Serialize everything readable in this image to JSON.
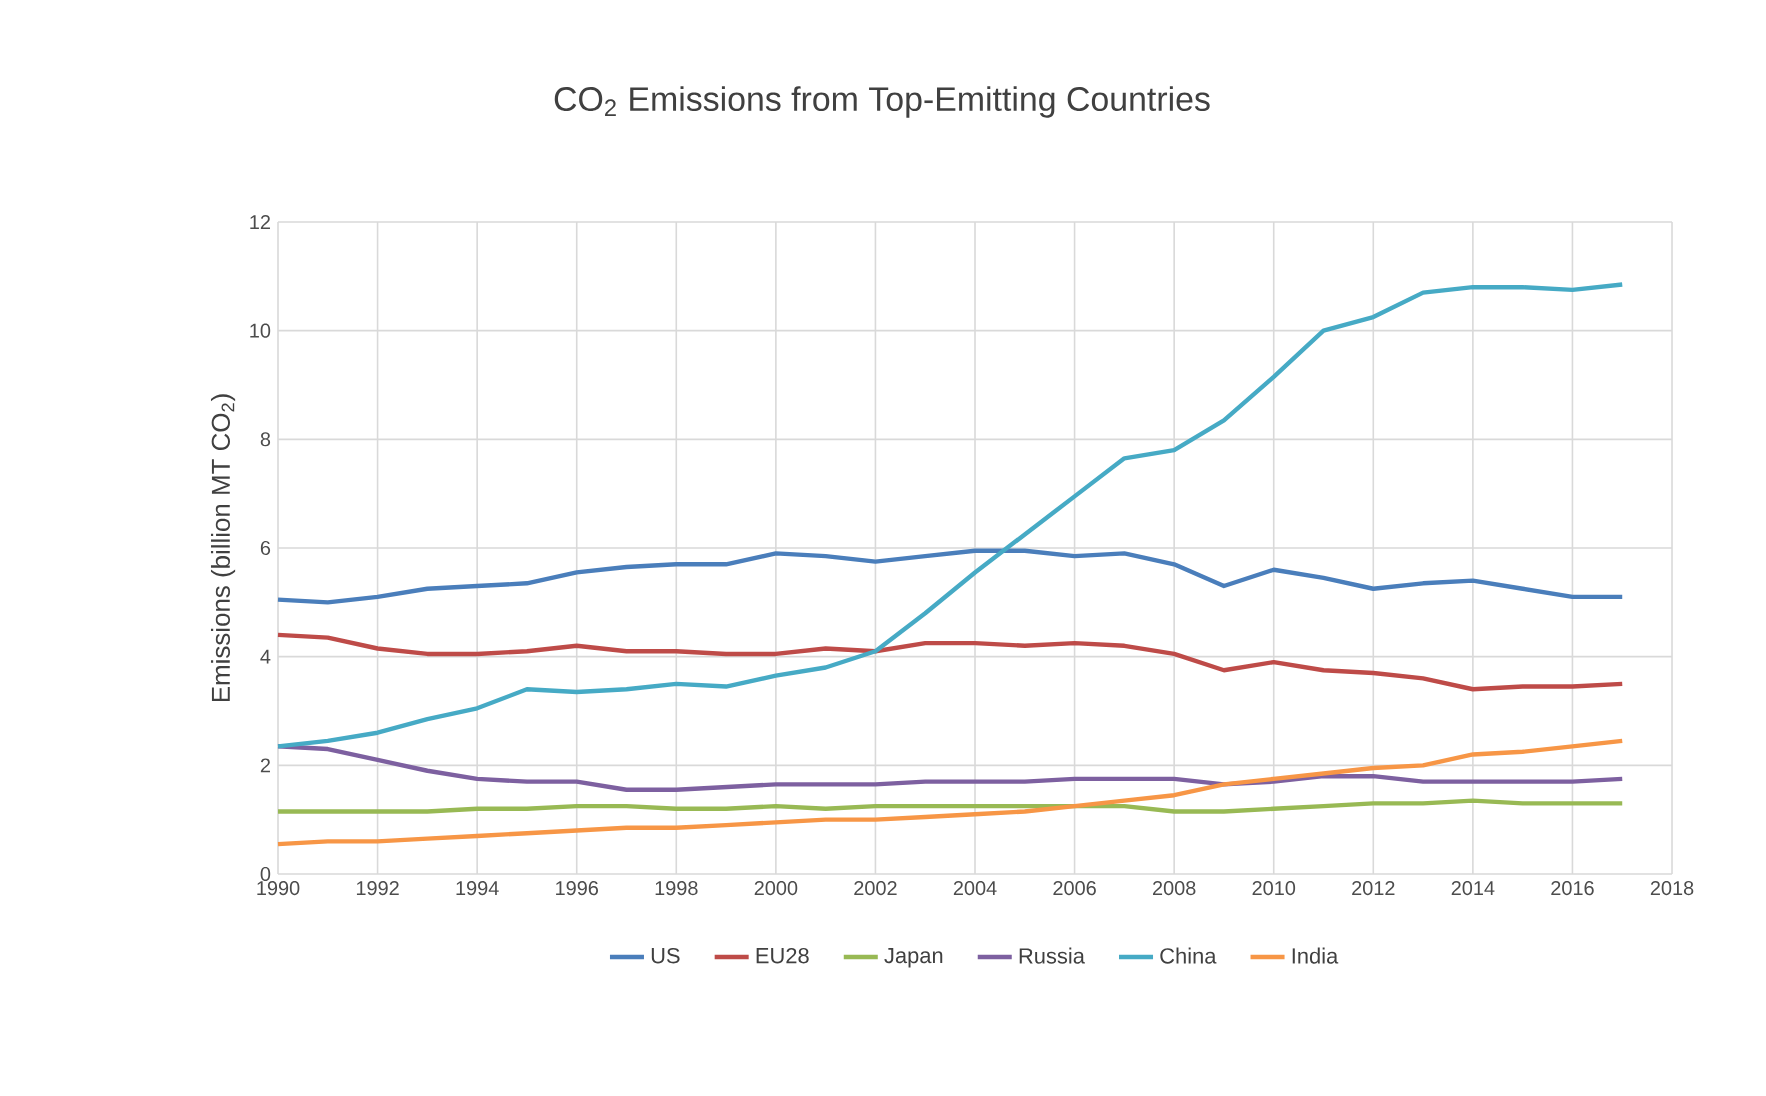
{
  "chart_data": {
    "type": "line",
    "title": "CO$_{2}$ Emissions from Top-Emitting Countries",
    "ylabel": "Emissions (billion MT CO$_{2}$)",
    "x": [
      1990,
      1991,
      1992,
      1993,
      1994,
      1995,
      1996,
      1997,
      1998,
      1999,
      2000,
      2001,
      2002,
      2003,
      2004,
      2005,
      2006,
      2007,
      2008,
      2009,
      2010,
      2011,
      2012,
      2013,
      2014,
      2015,
      2016,
      2017
    ],
    "xlim": [
      1990,
      2018
    ],
    "xticks": [
      1990,
      1992,
      1994,
      1996,
      1998,
      2000,
      2002,
      2004,
      2006,
      2008,
      2010,
      2012,
      2014,
      2016,
      2018
    ],
    "ylim": [
      0,
      12
    ],
    "yticks": [
      0,
      2,
      4,
      6,
      8,
      10,
      12
    ],
    "grid": true,
    "legend": "bottom",
    "marker": "none",
    "line_style": "solid",
    "series": [
      {
        "name": "US",
        "color": "#4a7ebb",
        "values": [
          5.05,
          5.0,
          5.1,
          5.25,
          5.3,
          5.35,
          5.55,
          5.65,
          5.7,
          5.7,
          5.9,
          5.85,
          5.75,
          5.85,
          5.95,
          5.95,
          5.85,
          5.9,
          5.7,
          5.3,
          5.6,
          5.45,
          5.25,
          5.35,
          5.4,
          5.25,
          5.1,
          5.1
        ]
      },
      {
        "name": "EU28",
        "color": "#be4b48",
        "values": [
          4.4,
          4.35,
          4.15,
          4.05,
          4.05,
          4.1,
          4.2,
          4.1,
          4.1,
          4.05,
          4.05,
          4.15,
          4.1,
          4.25,
          4.25,
          4.2,
          4.25,
          4.2,
          4.05,
          3.75,
          3.9,
          3.75,
          3.7,
          3.6,
          3.4,
          3.45,
          3.45,
          3.5
        ]
      },
      {
        "name": "Japan",
        "color": "#98b954",
        "values": [
          1.15,
          1.15,
          1.15,
          1.15,
          1.2,
          1.2,
          1.25,
          1.25,
          1.2,
          1.2,
          1.25,
          1.2,
          1.25,
          1.25,
          1.25,
          1.25,
          1.25,
          1.25,
          1.15,
          1.15,
          1.2,
          1.25,
          1.3,
          1.3,
          1.35,
          1.3,
          1.3,
          1.3
        ]
      },
      {
        "name": "Russia",
        "color": "#7d60a0",
        "values": [
          2.35,
          2.3,
          2.1,
          1.9,
          1.75,
          1.7,
          1.7,
          1.55,
          1.55,
          1.6,
          1.65,
          1.65,
          1.65,
          1.7,
          1.7,
          1.7,
          1.75,
          1.75,
          1.75,
          1.65,
          1.7,
          1.8,
          1.8,
          1.7,
          1.7,
          1.7,
          1.7,
          1.75
        ]
      },
      {
        "name": "China",
        "color": "#46aac5",
        "values": [
          2.35,
          2.45,
          2.6,
          2.85,
          3.05,
          3.4,
          3.35,
          3.4,
          3.5,
          3.45,
          3.65,
          3.8,
          4.1,
          4.8,
          5.55,
          6.25,
          6.95,
          7.65,
          7.8,
          8.35,
          9.15,
          10.0,
          10.25,
          10.7,
          10.8,
          10.8,
          10.75,
          10.85
        ]
      },
      {
        "name": "India",
        "color": "#f79646",
        "values": [
          0.55,
          0.6,
          0.6,
          0.65,
          0.7,
          0.75,
          0.8,
          0.85,
          0.85,
          0.9,
          0.95,
          1.0,
          1.0,
          1.05,
          1.1,
          1.15,
          1.25,
          1.35,
          1.45,
          1.65,
          1.75,
          1.85,
          1.95,
          2.0,
          2.2,
          2.25,
          2.35,
          2.45
        ]
      }
    ]
  }
}
